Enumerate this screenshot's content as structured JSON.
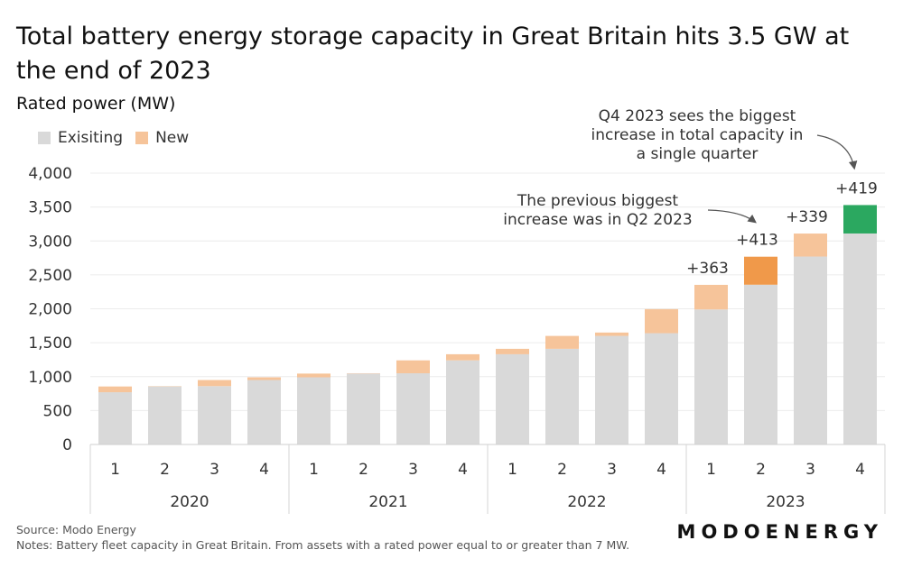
{
  "title": "Total battery energy storage capacity in Great Britain hits 3.5 GW at the end of 2023",
  "ylabel": "Rated power (MW)",
  "legend": {
    "existing": "Exisiting",
    "new": "New",
    "existing_color": "#d9d9d9",
    "new_color": "#f6c49a"
  },
  "source": "Source: Modo Energy",
  "notes": "Notes: Battery fleet capacity in Great Britain. From assets with a rated power equal to or greater than 7 MW.",
  "logo": "MODOENERGY",
  "chart_data": {
    "type": "bar",
    "stacked": true,
    "title": "Total battery energy storage capacity in Great Britain hits 3.5 GW at the end of 2023",
    "ylabel": "Rated power (MW)",
    "xlabel": "",
    "ylim": [
      0,
      4000
    ],
    "yticks": [
      0,
      500,
      1000,
      1500,
      2000,
      2500,
      3000,
      3500,
      4000
    ],
    "ytick_labels": [
      "0",
      "500",
      "1,000",
      "1,500",
      "2,000",
      "2,500",
      "3,000",
      "3,500",
      "4,000"
    ],
    "years": [
      "2020",
      "2021",
      "2022",
      "2023"
    ],
    "categories": [
      "1",
      "2",
      "3",
      "4",
      "1",
      "2",
      "3",
      "4",
      "1",
      "2",
      "3",
      "4",
      "1",
      "2",
      "3",
      "4"
    ],
    "series": [
      {
        "name": "Exisiting",
        "color": "#d9d9d9",
        "values": [
          770,
          855,
          860,
          950,
          990,
          1045,
          1050,
          1240,
          1330,
          1410,
          1600,
          1640,
          1990,
          2355,
          2770,
          3110
        ]
      },
      {
        "name": "New",
        "color": "#f6c49a",
        "values": [
          85,
          5,
          90,
          40,
          55,
          5,
          190,
          90,
          80,
          190,
          50,
          355,
          363,
          413,
          339,
          419
        ]
      }
    ],
    "highlight_colors": {
      "13": "#f0994a",
      "15": "#2ba860"
    },
    "data_labels": {
      "12": "+363",
      "13": "+413",
      "14": "+339",
      "15": "+419"
    },
    "annotations": [
      {
        "text": [
          "The previous biggest",
          "increase was in Q2 2023"
        ],
        "target": 13
      },
      {
        "text": [
          "Q4 2023 sees the biggest",
          "increase in total capacity in",
          "a single quarter"
        ],
        "target": 15
      }
    ],
    "legend_position": "top-left",
    "grid": true
  }
}
